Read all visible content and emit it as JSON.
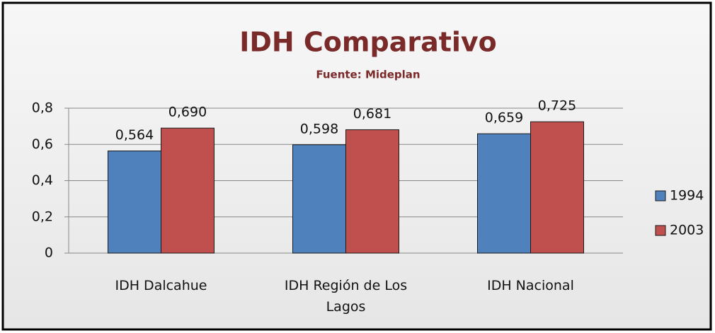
{
  "chart_data": {
    "type": "bar",
    "title": "IDH Comparativo",
    "subtitle": "Fuente: Mideplan",
    "categories": [
      "IDH Dalcahue",
      "IDH Región de Los Lagos",
      "IDH Nacional"
    ],
    "series": [
      {
        "name": "1994",
        "color": "#4f81bd",
        "values": [
          0.564,
          0.598,
          0.659
        ],
        "value_labels": [
          "0,564",
          "0,598",
          "0,659"
        ]
      },
      {
        "name": "2003",
        "color": "#c0504d",
        "values": [
          0.69,
          0.681,
          0.725
        ],
        "value_labels": [
          "0,690",
          "0,681",
          "0,725"
        ]
      }
    ],
    "ylim": [
      0,
      0.8
    ],
    "yticks": [
      0,
      {
        "value": 0.2,
        "label": "0,2"
      },
      {
        "value": 0.4,
        "label": "0,4"
      },
      {
        "value": 0.6,
        "label": "0,6"
      },
      {
        "value": 0.8,
        "label": "0,8"
      }
    ],
    "grid": true,
    "legend": "right"
  }
}
